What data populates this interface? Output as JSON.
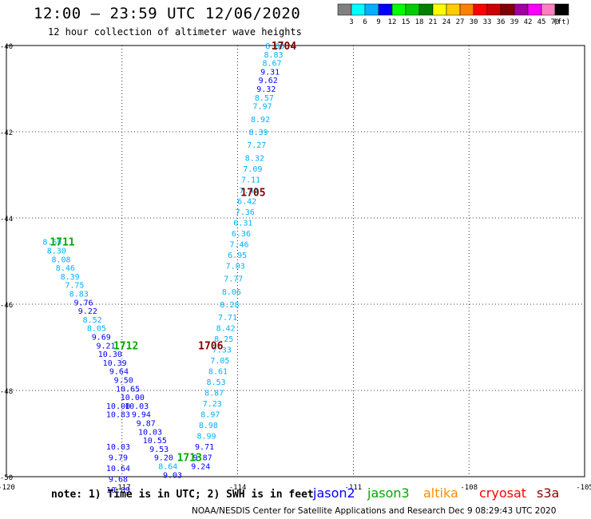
{
  "header": {
    "title": "12:00 – 23:59 UTC 12/06/2020",
    "subtitle": "12 hour collection of altimeter wave heights"
  },
  "legend": {
    "unit": "(ft)",
    "colors": [
      "#808080",
      "#00ffff",
      "#00b0ff",
      "#0000ff",
      "#00ff00",
      "#00cc00",
      "#008000",
      "#ffff00",
      "#ffcc00",
      "#ff8000",
      "#ff0000",
      "#cc0000",
      "#800000",
      "#a000a0",
      "#ff00ff",
      "#ff80c0",
      "#000000"
    ],
    "labels": [
      "3",
      "6",
      "9",
      "12",
      "15",
      "18",
      "21",
      "24",
      "27",
      "30",
      "33",
      "36",
      "39",
      "42",
      "45",
      "70"
    ]
  },
  "footer": {
    "note": "note:  1) Time is in UTC;  2) SWH is in feet",
    "satellites": [
      {
        "name": "jason2",
        "color": "#0000ff"
      },
      {
        "name": "jason3",
        "color": "#00aa00"
      },
      {
        "name": "altika",
        "color": "#ff8c00"
      },
      {
        "name": "cryosat",
        "color": "#ff0000"
      },
      {
        "name": "s3a",
        "color": "#8b0000"
      }
    ],
    "credit": "NOAA/NESDIS Center for Satellite Applications and Research   Dec  9 08:29:43 UTC 2020"
  },
  "chart_data": {
    "type": "scatter",
    "xlim": [
      -120,
      -105
    ],
    "ylim": [
      -50,
      -40
    ],
    "x_ticks": [
      -120,
      -117,
      -114,
      -111,
      -108,
      -105
    ],
    "y_ticks": [
      -40,
      -42,
      -44,
      -46,
      -48,
      -50
    ],
    "grid": true,
    "series": [
      {
        "name": "s3a",
        "color": "#800000",
        "pass_labels": [
          {
            "text": "1704",
            "lon": -112.8,
            "lat": -40.0
          },
          {
            "text": "1705",
            "lon": -113.6,
            "lat": -43.4
          },
          {
            "text": "1706",
            "lon": -114.7,
            "lat": -46.95
          }
        ],
        "points": [
          {
            "lon": -113.03,
            "lat": -40.0,
            "v": 8.0,
            "color": "#00b0ff"
          },
          {
            "lon": -113.07,
            "lat": -40.2,
            "v": 8.83,
            "color": "#00b0ff"
          },
          {
            "lon": -113.11,
            "lat": -40.4,
            "v": 8.67,
            "color": "#00b0ff"
          },
          {
            "lon": -113.16,
            "lat": -40.6,
            "v": 9.31,
            "color": "#0000ff"
          },
          {
            "lon": -113.21,
            "lat": -40.8,
            "v": 9.62,
            "color": "#0000ff"
          },
          {
            "lon": -113.26,
            "lat": -41.0,
            "v": 9.32,
            "color": "#0000ff"
          },
          {
            "lon": -113.31,
            "lat": -41.2,
            "v": 8.57,
            "color": "#00b0ff"
          },
          {
            "lon": -113.36,
            "lat": -41.4,
            "v": 7.97,
            "color": "#00b0ff"
          },
          {
            "lon": -113.41,
            "lat": -41.7,
            "v": 8.92,
            "color": "#00b0ff"
          },
          {
            "lon": -113.46,
            "lat": -42.0,
            "v": 8.39,
            "color": "#00b0ff"
          },
          {
            "lon": -113.51,
            "lat": -42.3,
            "v": 7.27,
            "color": "#00b0ff"
          },
          {
            "lon": -113.56,
            "lat": -42.6,
            "v": 8.32,
            "color": "#00b0ff"
          },
          {
            "lon": -113.61,
            "lat": -42.85,
            "v": 7.09,
            "color": "#00b0ff"
          },
          {
            "lon": -113.66,
            "lat": -43.1,
            "v": 7.11,
            "color": "#00b0ff"
          },
          {
            "lon": -113.71,
            "lat": -43.35,
            "v": 7.42,
            "color": "#00b0ff"
          },
          {
            "lon": -113.76,
            "lat": -43.6,
            "v": 6.42,
            "color": "#00b0ff"
          },
          {
            "lon": -113.81,
            "lat": -43.85,
            "v": 7.36,
            "color": "#00b0ff"
          },
          {
            "lon": -113.86,
            "lat": -44.1,
            "v": 6.31,
            "color": "#00b0ff"
          },
          {
            "lon": -113.91,
            "lat": -44.35,
            "v": 6.36,
            "color": "#00b0ff"
          },
          {
            "lon": -113.96,
            "lat": -44.6,
            "v": 7.46,
            "color": "#00b0ff"
          },
          {
            "lon": -114.01,
            "lat": -44.85,
            "v": 6.95,
            "color": "#00b0ff"
          },
          {
            "lon": -114.06,
            "lat": -45.1,
            "v": 7.03,
            "color": "#00b0ff"
          },
          {
            "lon": -114.11,
            "lat": -45.4,
            "v": 7.77,
            "color": "#00b0ff"
          },
          {
            "lon": -114.16,
            "lat": -45.7,
            "v": 8.06,
            "color": "#00b0ff"
          },
          {
            "lon": -114.21,
            "lat": -46.0,
            "v": 8.28,
            "color": "#00b0ff"
          },
          {
            "lon": -114.26,
            "lat": -46.3,
            "v": 7.71,
            "color": "#00b0ff"
          },
          {
            "lon": -114.31,
            "lat": -46.55,
            "v": 8.42,
            "color": "#00b0ff"
          },
          {
            "lon": -114.36,
            "lat": -46.8,
            "v": 8.25,
            "color": "#00b0ff"
          },
          {
            "lon": -114.41,
            "lat": -47.05,
            "v": 7.33,
            "color": "#00b0ff"
          },
          {
            "lon": -114.46,
            "lat": -47.3,
            "v": 7.05,
            "color": "#00b0ff"
          },
          {
            "lon": -114.51,
            "lat": -47.55,
            "v": 8.61,
            "color": "#00b0ff"
          },
          {
            "lon": -114.56,
            "lat": -47.8,
            "v": 8.53,
            "color": "#00b0ff"
          },
          {
            "lon": -114.61,
            "lat": -48.05,
            "v": 8.87,
            "color": "#00b0ff"
          },
          {
            "lon": -114.66,
            "lat": -48.3,
            "v": 7.23,
            "color": "#00b0ff"
          },
          {
            "lon": -114.71,
            "lat": -48.55,
            "v": 8.97,
            "color": "#00b0ff"
          },
          {
            "lon": -114.76,
            "lat": -48.8,
            "v": 8.98,
            "color": "#00b0ff"
          },
          {
            "lon": -114.81,
            "lat": -49.05,
            "v": 8.99,
            "color": "#00b0ff"
          },
          {
            "lon": -114.86,
            "lat": -49.3,
            "v": 9.71,
            "color": "#0000ff"
          },
          {
            "lon": -114.91,
            "lat": -49.55,
            "v": 9.87,
            "color": "#0000ff"
          },
          {
            "lon": -114.96,
            "lat": -49.75,
            "v": 9.24,
            "color": "#0000ff"
          }
        ]
      },
      {
        "name": "jason3",
        "color": "#00aa00",
        "pass_labels": [
          {
            "text": "1711",
            "lon": -118.55,
            "lat": -44.55
          },
          {
            "text": "1712",
            "lon": -116.9,
            "lat": -46.95
          },
          {
            "text": "1713",
            "lon": -115.25,
            "lat": -49.55
          }
        ],
        "points": [
          {
            "lon": -118.81,
            "lat": -44.55,
            "v": 8.65,
            "color": "#00b0ff"
          },
          {
            "lon": -118.7,
            "lat": -44.75,
            "v": 8.3,
            "color": "#00b0ff"
          },
          {
            "lon": -118.58,
            "lat": -44.95,
            "v": 8.08,
            "color": "#00b0ff"
          },
          {
            "lon": -118.47,
            "lat": -45.15,
            "v": 8.46,
            "color": "#00b0ff"
          },
          {
            "lon": -118.35,
            "lat": -45.35,
            "v": 8.39,
            "color": "#00b0ff"
          },
          {
            "lon": -118.23,
            "lat": -45.55,
            "v": 7.75,
            "color": "#00b0ff"
          },
          {
            "lon": -118.12,
            "lat": -45.75,
            "v": 8.83,
            "color": "#00b0ff"
          },
          {
            "lon": -118.0,
            "lat": -45.95,
            "v": 9.76,
            "color": "#0000ff"
          },
          {
            "lon": -117.89,
            "lat": -46.15,
            "v": 9.22,
            "color": "#0000ff"
          },
          {
            "lon": -117.77,
            "lat": -46.35,
            "v": 8.52,
            "color": "#00b0ff"
          },
          {
            "lon": -117.66,
            "lat": -46.55,
            "v": 8.05,
            "color": "#00b0ff"
          },
          {
            "lon": -117.54,
            "lat": -46.75,
            "v": 9.69,
            "color": "#0000ff"
          },
          {
            "lon": -117.42,
            "lat": -46.95,
            "v": 9.21,
            "color": "#0000ff"
          },
          {
            "lon": -117.31,
            "lat": -47.15,
            "v": 10.3,
            "color": "#0000ff"
          },
          {
            "lon": -117.19,
            "lat": -47.35,
            "v": 10.39,
            "color": "#0000ff"
          },
          {
            "lon": -117.08,
            "lat": -47.55,
            "v": 9.64,
            "color": "#0000ff"
          },
          {
            "lon": -116.96,
            "lat": -47.75,
            "v": 9.5,
            "color": "#0000ff"
          },
          {
            "lon": -116.85,
            "lat": -47.95,
            "v": 10.65,
            "color": "#0000ff"
          },
          {
            "lon": -116.73,
            "lat": -48.15,
            "v": 10.0,
            "color": "#0000ff"
          },
          {
            "lon": -116.62,
            "lat": -48.35,
            "v": 10.03,
            "color": "#0000ff"
          },
          {
            "lon": -116.5,
            "lat": -48.55,
            "v": 9.94,
            "color": "#0000ff"
          },
          {
            "lon": -116.38,
            "lat": -48.75,
            "v": 9.87,
            "color": "#0000ff"
          },
          {
            "lon": -116.27,
            "lat": -48.95,
            "v": 10.03,
            "color": "#0000ff"
          },
          {
            "lon": -116.15,
            "lat": -49.15,
            "v": 10.55,
            "color": "#0000ff"
          },
          {
            "lon": -116.04,
            "lat": -49.35,
            "v": 9.53,
            "color": "#0000ff"
          },
          {
            "lon": -115.92,
            "lat": -49.55,
            "v": 9.2,
            "color": "#0000ff"
          },
          {
            "lon": -115.81,
            "lat": -49.75,
            "v": 8.64,
            "color": "#00b0ff"
          },
          {
            "lon": -115.69,
            "lat": -49.95,
            "v": 9.03,
            "color": "#0000ff"
          }
        ]
      },
      {
        "name": "jason3",
        "color": "#00aa00",
        "pass_labels": [],
        "points": [
          {
            "lon": -117.1,
            "lat": -48.35,
            "v": 10.0,
            "color": "#0000ff"
          },
          {
            "lon": -117.1,
            "lat": -48.55,
            "v": 10.83,
            "color": "#0000ff"
          },
          {
            "lon": -117.1,
            "lat": -49.3,
            "v": 10.03,
            "color": "#0000ff"
          },
          {
            "lon": -117.1,
            "lat": -49.55,
            "v": 9.79,
            "color": "#0000ff"
          },
          {
            "lon": -117.1,
            "lat": -49.8,
            "v": 10.64,
            "color": "#0000ff"
          },
          {
            "lon": -117.1,
            "lat": -50.05,
            "v": 9.68,
            "color": "#0000ff"
          },
          {
            "lon": -117.1,
            "lat": -50.3,
            "v": 10.09,
            "color": "#0000ff"
          }
        ]
      }
    ]
  }
}
